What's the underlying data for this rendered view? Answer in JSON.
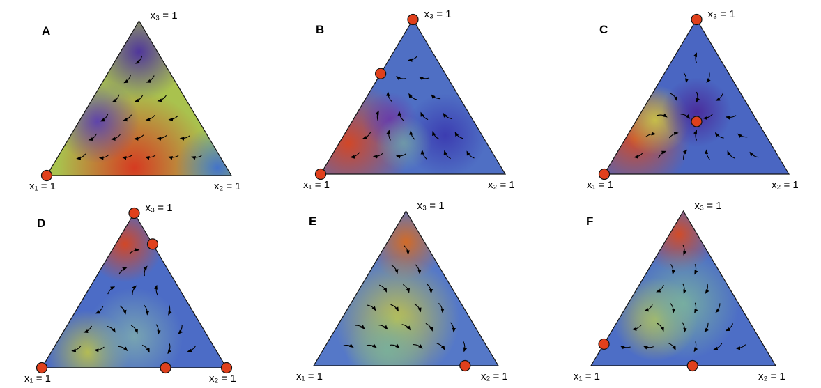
{
  "panels": [
    {
      "label": "A",
      "vertices": [
        "x₁ = 1",
        "x₂ = 1",
        "x₃ = 1"
      ]
    },
    {
      "label": "B",
      "vertices": [
        "x₁ = 1",
        "x₂ = 1",
        "x₃ = 1"
      ]
    },
    {
      "label": "C",
      "vertices": [
        "x₁ = 1",
        "x₂ = 1",
        "x₃ = 1"
      ]
    },
    {
      "label": "D",
      "vertices": [
        "x₁ = 1",
        "x₂ = 1",
        "x₃ = 1"
      ]
    },
    {
      "label": "E",
      "vertices": [
        "x₁ = 1",
        "x₂ = 1",
        "x₃ = 1"
      ]
    },
    {
      "label": "F",
      "vertices": [
        "x₁ = 1",
        "x₂ = 1",
        "x₃ = 1"
      ]
    }
  ]
}
